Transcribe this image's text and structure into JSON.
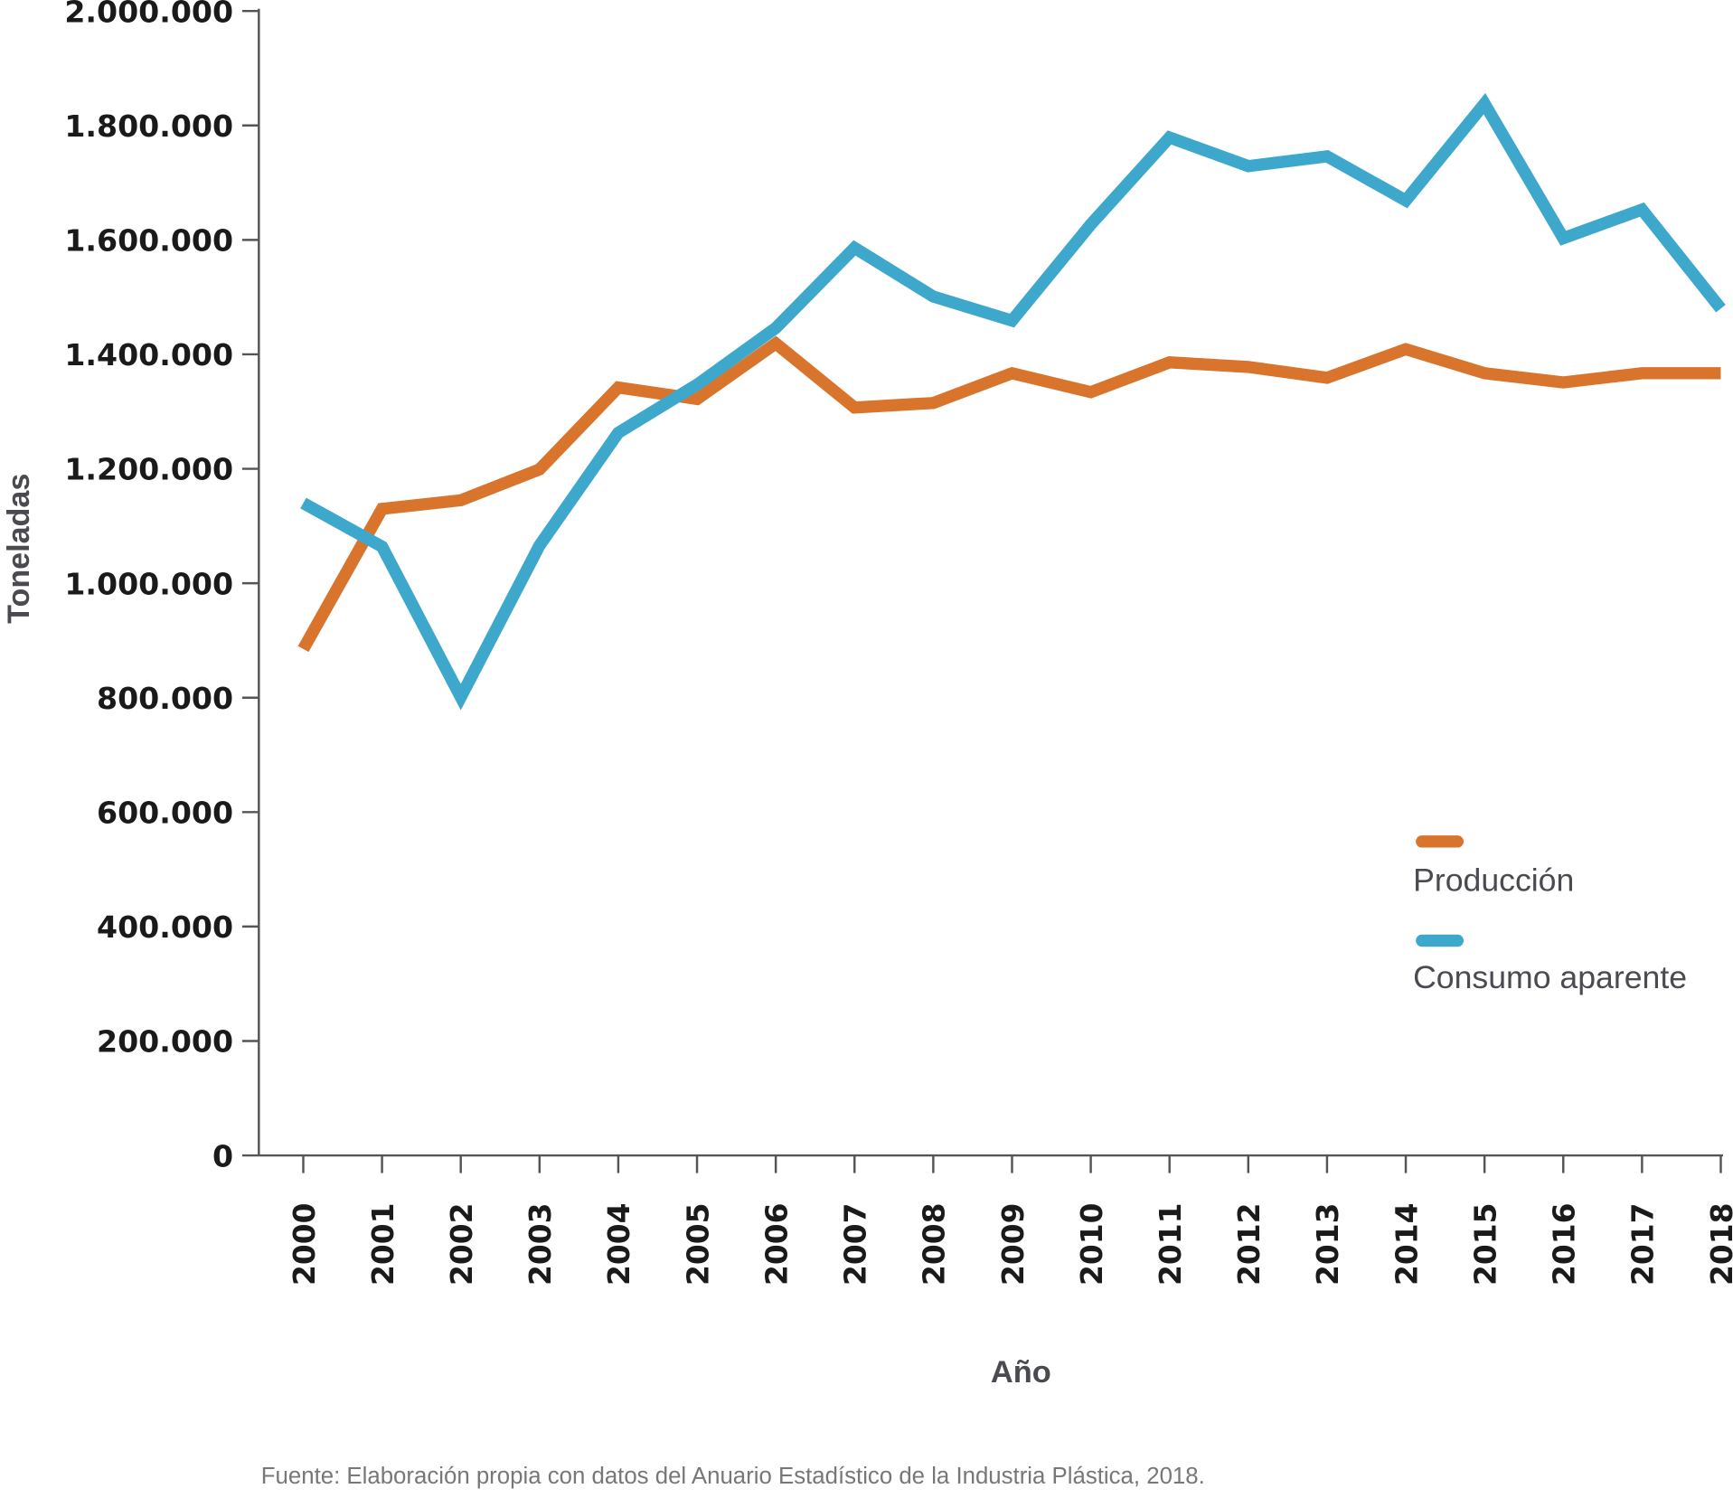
{
  "chart_data": {
    "type": "line",
    "title": "",
    "xlabel": "Año",
    "ylabel": "Toneladas",
    "ylim": [
      0,
      2000000
    ],
    "yticks": [
      0,
      200000,
      400000,
      600000,
      800000,
      1000000,
      1200000,
      1400000,
      1600000,
      1800000,
      2000000
    ],
    "ytick_labels": [
      "0",
      "200.000",
      "400.000",
      "600.000",
      "800.000",
      "1.000.000",
      "1.200.000",
      "1.400.000",
      "1.600.000",
      "1.800.000",
      "2.000.000"
    ],
    "x": [
      "2000",
      "2001",
      "2002",
      "2003",
      "2004",
      "2005",
      "2006",
      "2007",
      "2008",
      "2009",
      "2010",
      "2011",
      "2012",
      "2013",
      "2014",
      "2015",
      "2016",
      "2017",
      "2018"
    ],
    "series": [
      {
        "name": "Producción",
        "color": "#d9742c",
        "values": [
          885000,
          1130000,
          1145000,
          1199000,
          1342000,
          1322000,
          1419000,
          1307000,
          1315000,
          1367000,
          1334000,
          1386000,
          1378000,
          1359000,
          1409000,
          1367000,
          1351000,
          1367000,
          1367000
        ]
      },
      {
        "name": "Consumo aparente",
        "color": "#3ea8cc",
        "values": [
          1140000,
          1064000,
          801000,
          1066000,
          1263000,
          1347000,
          1446000,
          1586000,
          1501000,
          1459000,
          1627000,
          1779000,
          1729000,
          1746000,
          1669000,
          1838000,
          1603000,
          1653000,
          1480000
        ]
      }
    ],
    "legend": "right",
    "grid": false
  },
  "source": "Fuente: Elaboración propia con datos del Anuario Estadístico de la Industria Plástica, 2018."
}
